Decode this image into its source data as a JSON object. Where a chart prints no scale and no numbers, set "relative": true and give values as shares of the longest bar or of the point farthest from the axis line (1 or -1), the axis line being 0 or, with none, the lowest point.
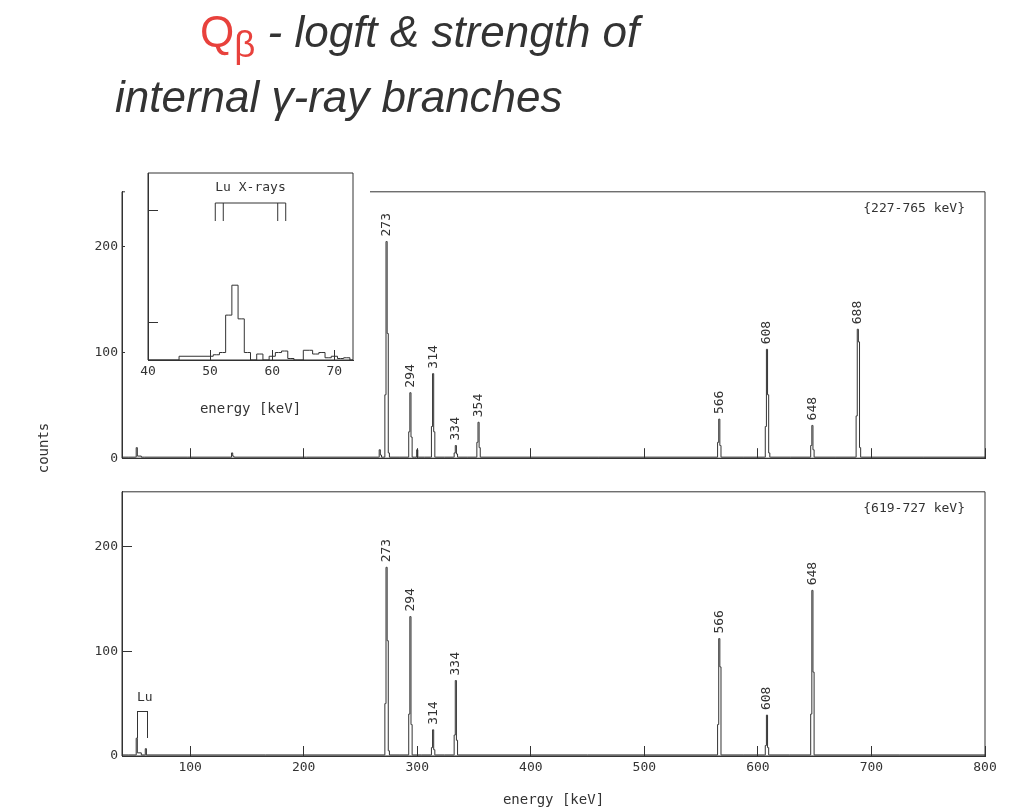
{
  "chart_data": [
    {
      "type": "step",
      "title": "Q$_{β}$ - logft & strength of internal γ-ray branches",
      "ylabel": "counts",
      "xlim": [
        40,
        800
      ],
      "xticks": [
        100,
        200,
        300,
        400,
        500,
        600,
        700,
        800
      ],
      "ylim": [
        0,
        252
      ],
      "yticks": [
        0,
        100,
        200
      ],
      "tick_labels": "y",
      "grid": false,
      "legend": false,
      "series": [
        {
          "color": "#333333",
          "x": [
            40,
            52,
            53,
            54,
            60,
            136,
            137,
            138,
            139,
            266,
            267,
            268,
            269,
            271,
            272,
            273,
            274,
            275,
            276,
            292,
            293,
            294,
            295,
            296,
            299,
            300,
            301,
            312,
            313,
            314,
            315,
            316,
            332,
            333,
            334,
            335,
            336,
            352,
            353,
            354,
            355,
            356,
            564,
            565,
            566,
            567,
            568,
            606,
            607,
            608,
            609,
            610,
            611,
            646,
            647,
            648,
            649,
            650,
            686,
            687,
            688,
            689,
            690,
            691,
            800
          ],
          "values": [
            1,
            1,
            10,
            2,
            1,
            1,
            5,
            2,
            1,
            1,
            8,
            3,
            1,
            1,
            60,
            205,
            118,
            5,
            1,
            1,
            25,
            62,
            20,
            1,
            1,
            8,
            1,
            1,
            30,
            80,
            25,
            1,
            1,
            5,
            12,
            4,
            1,
            1,
            15,
            34,
            10,
            1,
            1,
            15,
            37,
            12,
            1,
            1,
            30,
            103,
            60,
            5,
            1,
            1,
            12,
            31,
            8,
            1,
            1,
            40,
            122,
            110,
            10,
            1,
            1
          ]
        }
      ],
      "annotations": [
        "{227-765 keV}",
        {
          "text": "273",
          "x": 273,
          "y": 205
        },
        {
          "text": "294",
          "x": 294,
          "y": 62
        },
        {
          "text": "314",
          "x": 314,
          "y": 80
        },
        {
          "text": "334",
          "x": 334,
          "y": 12
        },
        {
          "text": "354",
          "x": 354,
          "y": 34
        },
        {
          "text": "566",
          "x": 566,
          "y": 37
        },
        {
          "text": "608",
          "x": 608,
          "y": 103
        },
        {
          "text": "648",
          "x": 648,
          "y": 31
        },
        {
          "text": "688",
          "x": 688,
          "y": 122
        }
      ]
    },
    {
      "type": "step",
      "xlabel": "energy [keV]",
      "xlim": [
        40,
        73
      ],
      "xticks": [
        40,
        50,
        60,
        70
      ],
      "relative": true,
      "tick_labels": "x",
      "grid": false,
      "legend": false,
      "series": [
        {
          "color": "#333333",
          "x": [
            40,
            50,
            51,
            52,
            53,
            54,
            55,
            56,
            57,
            58,
            59,
            60,
            61,
            62,
            63,
            64,
            66,
            67,
            68,
            69,
            70,
            71,
            72,
            73
          ],
          "values": [
            0,
            0.05,
            0.07,
            0.1,
            0.6,
            1,
            0.55,
            0.1,
            0,
            0.08,
            0,
            0.05,
            0.1,
            0.12,
            0.02,
            0,
            0.13,
            0.08,
            0.1,
            0.03,
            0.05,
            0.02,
            0.03,
            0
          ]
        }
      ],
      "annotations": [
        "Lu X-rays"
      ]
    },
    {
      "type": "step",
      "xlabel": "energy [keV]",
      "xlim": [
        40,
        800
      ],
      "xticks": [
        100,
        200,
        300,
        400,
        500,
        600,
        700,
        800
      ],
      "ylim": [
        0,
        252
      ],
      "yticks": [
        0,
        100,
        200
      ],
      "grid": false,
      "legend": false,
      "series": [
        {
          "color": "#333333",
          "x": [
            40,
            52,
            53,
            54,
            60,
            61,
            62,
            271,
            272,
            273,
            274,
            275,
            276,
            292,
            293,
            294,
            295,
            296,
            312,
            313,
            314,
            315,
            316,
            332,
            333,
            334,
            335,
            336,
            564,
            565,
            566,
            567,
            568,
            606,
            607,
            608,
            609,
            610,
            646,
            647,
            648,
            649,
            650,
            800
          ],
          "values": [
            1,
            1,
            17,
            3,
            1,
            7,
            1,
            1,
            50,
            180,
            110,
            5,
            1,
            1,
            40,
            133,
            30,
            1,
            1,
            8,
            25,
            6,
            1,
            1,
            20,
            72,
            15,
            1,
            1,
            30,
            112,
            85,
            1,
            1,
            10,
            39,
            8,
            1,
            1,
            40,
            158,
            80,
            1,
            1
          ]
        }
      ],
      "annotations": [
        "{619-727 keV}",
        "Lu",
        {
          "text": "273",
          "x": 273,
          "y": 180
        },
        {
          "text": "294",
          "x": 294,
          "y": 133
        },
        {
          "text": "314",
          "x": 314,
          "y": 25
        },
        {
          "text": "334",
          "x": 334,
          "y": 72
        },
        {
          "text": "566",
          "x": 566,
          "y": 112
        },
        {
          "text": "608",
          "x": 608,
          "y": 39
        },
        {
          "text": "648",
          "x": 648,
          "y": 158
        }
      ]
    }
  ]
}
